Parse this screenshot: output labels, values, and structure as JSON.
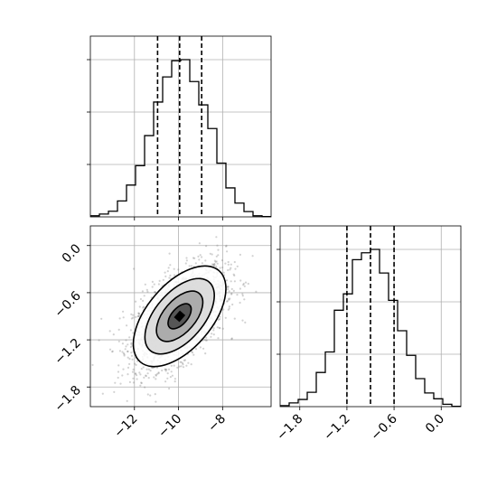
{
  "chart_data": {
    "type": "corner",
    "colors": {
      "frame": "#000000",
      "grid": "#b0b0b0",
      "hist": "#000000",
      "scatter": "#7f7f7f",
      "contour": "#000000"
    },
    "x_param": {
      "range": [
        -14.0,
        -5.8
      ],
      "ticks": [
        -12,
        -10,
        -8
      ],
      "tick_labels": [
        "−12",
        "−10",
        "−8"
      ],
      "quantiles": [
        -10.95,
        -9.95,
        -8.95
      ]
    },
    "y_param": {
      "range": [
        -2.05,
        0.25
      ],
      "ticks": [
        -1.8,
        -1.2,
        -0.6,
        0.0
      ],
      "tick_labels": [
        "−1.8",
        "−1.2",
        "−0.6",
        "0.0"
      ],
      "quantiles": [
        -1.2,
        -0.9,
        -0.6
      ]
    },
    "hist_x": {
      "bin_edges": [
        -14.0,
        -13.59,
        -13.18,
        -12.77,
        -12.36,
        -11.95,
        -11.54,
        -11.13,
        -10.72,
        -10.31,
        -9.9,
        -9.49,
        -9.08,
        -8.67,
        -8.26,
        -7.85,
        -7.44,
        -7.03,
        -6.62,
        -6.21,
        -5.8
      ],
      "counts": [
        3,
        8,
        16,
        45,
        90,
        145,
        230,
        325,
        396,
        442,
        445,
        383,
        317,
        250,
        152,
        82,
        39,
        15,
        3,
        1
      ]
    },
    "hist_y": {
      "bin_edges": [
        -2.05,
        -1.935,
        -1.82,
        -1.705,
        -1.59,
        -1.475,
        -1.36,
        -1.245,
        -1.13,
        -1.015,
        -0.9,
        -0.785,
        -0.67,
        -0.555,
        -0.44,
        -0.325,
        -0.21,
        -0.095,
        0.02,
        0.135,
        0.25
      ],
      "counts": [
        3,
        11,
        21,
        42,
        100,
        160,
        282,
        330,
        430,
        450,
        460,
        391,
        311,
        222,
        150,
        82,
        40,
        23,
        7,
        1
      ]
    },
    "scatter_2d": {
      "mean": [
        -9.95,
        -0.9
      ],
      "std": [
        1.05,
        0.32
      ],
      "correlation": 0.55,
      "n_points": 2200,
      "contour_levels_sigma": [
        0.5,
        1.0,
        1.5,
        2.0
      ]
    }
  }
}
